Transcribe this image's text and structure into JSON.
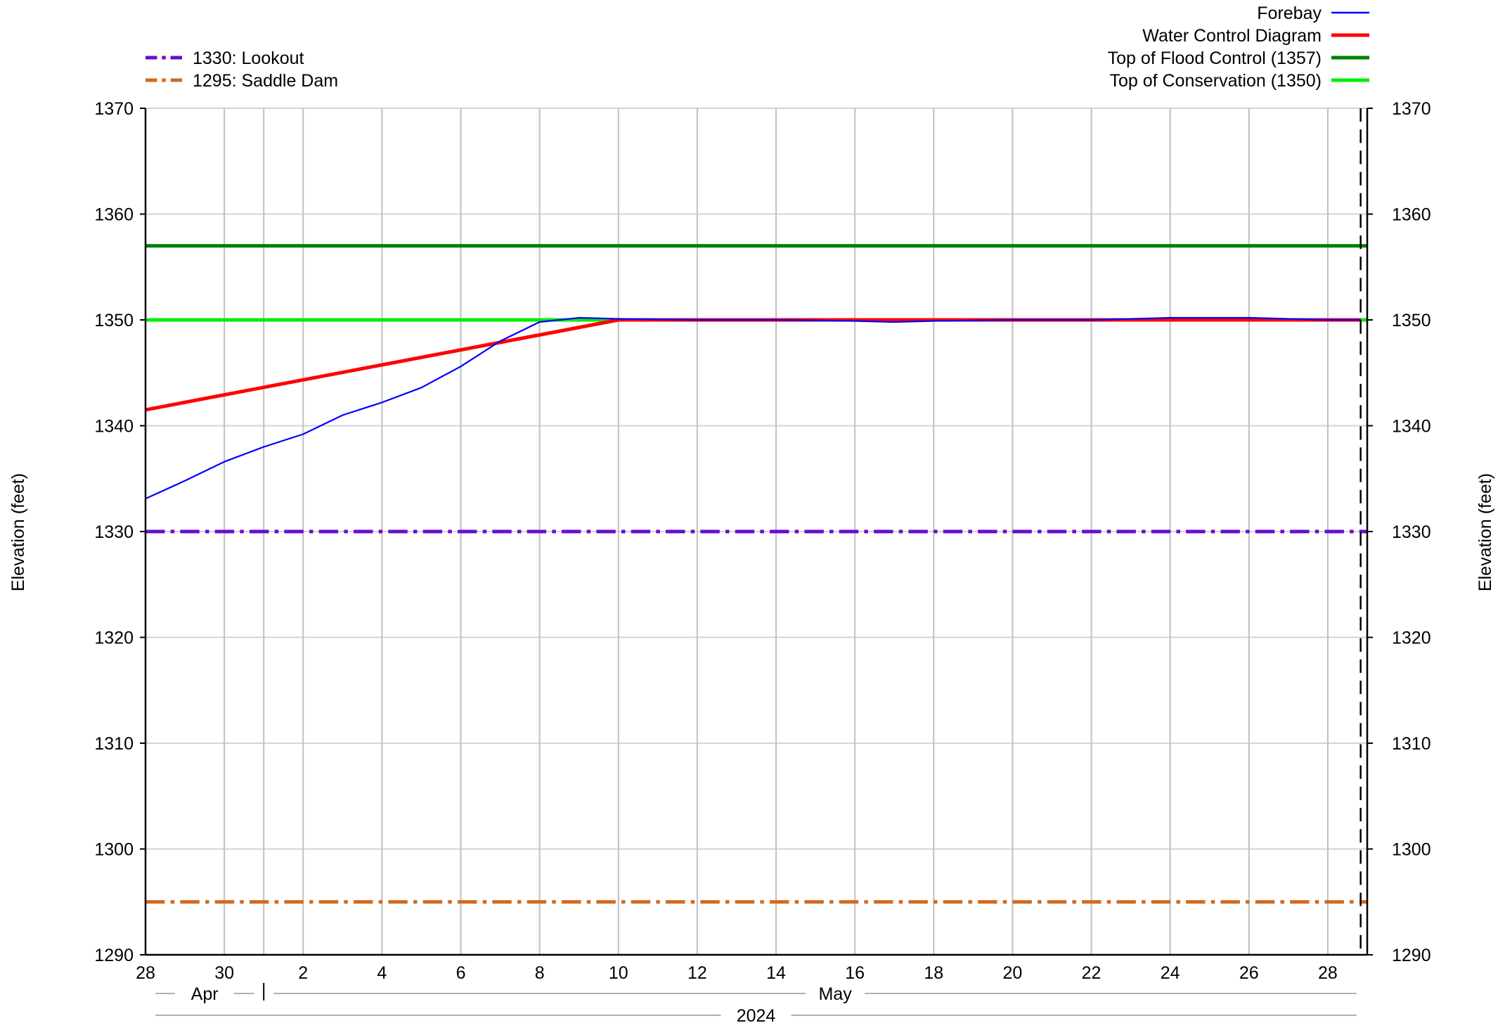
{
  "chart_data": {
    "type": "line",
    "title": "",
    "ylabel_left": "Elevation (feet)",
    "ylabel_right": "Elevation (feet)",
    "ylim": [
      1290,
      1370
    ],
    "yticks": [
      1290,
      1300,
      1310,
      1320,
      1330,
      1340,
      1350,
      1360,
      1370
    ],
    "x_range": [
      "2024-04-28",
      "2024-05-29"
    ],
    "x_ticks": [
      {
        "date": "2024-04-28",
        "label": "28"
      },
      {
        "date": "2024-04-30",
        "label": "30"
      },
      {
        "date": "2024-05-02",
        "label": "2"
      },
      {
        "date": "2024-05-04",
        "label": "4"
      },
      {
        "date": "2024-05-06",
        "label": "6"
      },
      {
        "date": "2024-05-08",
        "label": "8"
      },
      {
        "date": "2024-05-10",
        "label": "10"
      },
      {
        "date": "2024-05-12",
        "label": "12"
      },
      {
        "date": "2024-05-14",
        "label": "14"
      },
      {
        "date": "2024-05-16",
        "label": "16"
      },
      {
        "date": "2024-05-18",
        "label": "18"
      },
      {
        "date": "2024-05-20",
        "label": "20"
      },
      {
        "date": "2024-05-22",
        "label": "22"
      },
      {
        "date": "2024-05-24",
        "label": "24"
      },
      {
        "date": "2024-05-26",
        "label": "26"
      },
      {
        "date": "2024-05-28",
        "label": "28"
      }
    ],
    "month_boundary": "2024-05-01",
    "current_time_marker": "2024-05-28 20:00",
    "month_labels": [
      {
        "label": "Apr",
        "date": "2024-04-29 12:00"
      },
      {
        "label": "May",
        "date": "2024-05-15 12:00"
      }
    ],
    "year_label": "2024",
    "grid": true,
    "legend_left": [
      {
        "name": "1330: Lookout",
        "color": "#6a0dcc",
        "style": "dash-dot"
      },
      {
        "name": "1295: Saddle Dam",
        "color": "#d2691e",
        "style": "dash-dot"
      }
    ],
    "legend_right": [
      {
        "name": "Forebay",
        "color": "#0000ff",
        "style": "solid-thin"
      },
      {
        "name": "Water Control Diagram",
        "color": "#ff0000",
        "style": "solid-thick"
      },
      {
        "name": "Top of Flood Control (1357)",
        "color": "#008000",
        "style": "solid-thick"
      },
      {
        "name": "Top of Conservation (1350)",
        "color": "#00ee00",
        "style": "solid-thick"
      }
    ],
    "series": [
      {
        "name": "1330: Lookout",
        "color": "#6a0dcc",
        "x": [
          "2024-04-28",
          "2024-05-29"
        ],
        "y": [
          1330,
          1330
        ]
      },
      {
        "name": "1295: Saddle Dam",
        "color": "#d2691e",
        "x": [
          "2024-04-28",
          "2024-05-29"
        ],
        "y": [
          1295,
          1295
        ]
      },
      {
        "name": "Top of Flood Control (1357)",
        "color": "#008000",
        "x": [
          "2024-04-28",
          "2024-05-29"
        ],
        "y": [
          1357,
          1357
        ]
      },
      {
        "name": "Top of Conservation (1350)",
        "color": "#00ee00",
        "x": [
          "2024-04-28",
          "2024-05-29"
        ],
        "y": [
          1350,
          1350
        ]
      },
      {
        "name": "Water Control Diagram",
        "color": "#ff0000",
        "x": [
          "2024-04-28",
          "2024-05-10",
          "2024-05-28 20:00"
        ],
        "y": [
          1341.5,
          1350,
          1350
        ]
      },
      {
        "name": "Forebay",
        "color": "#0000ff",
        "x": [
          "2024-04-28",
          "2024-04-29",
          "2024-04-30",
          "2024-05-01",
          "2024-05-02",
          "2024-05-03",
          "2024-05-04",
          "2024-05-05",
          "2024-05-06",
          "2024-05-07",
          "2024-05-08",
          "2024-05-09",
          "2024-05-10",
          "2024-05-12",
          "2024-05-14",
          "2024-05-16",
          "2024-05-17",
          "2024-05-18",
          "2024-05-20",
          "2024-05-22",
          "2024-05-24",
          "2024-05-26",
          "2024-05-27",
          "2024-05-28",
          "2024-05-28 20:00"
        ],
        "y": [
          1333.1,
          1334.8,
          1336.6,
          1338.0,
          1339.2,
          1341.0,
          1342.2,
          1343.6,
          1345.6,
          1348.0,
          1349.8,
          1350.2,
          1350.1,
          1350.0,
          1350.0,
          1349.9,
          1349.8,
          1349.9,
          1350.0,
          1350.0,
          1350.2,
          1350.2,
          1350.1,
          1350.0,
          1350.0
        ]
      }
    ]
  }
}
